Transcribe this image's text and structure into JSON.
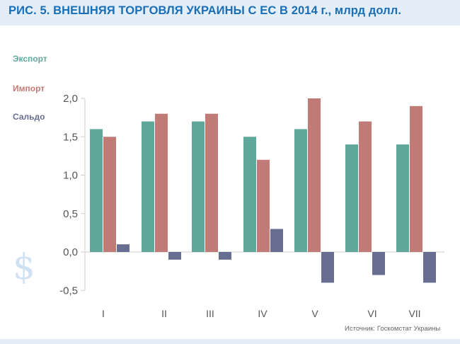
{
  "header": {
    "title": "РИС. 5. ВНЕШНЯЯ ТОРГОВЛЯ УКРАИНЫ С ЕС В 2014 г., млрд долл."
  },
  "source": "Источник: Госкомстат Украины",
  "decor": {
    "dollar": "$"
  },
  "colors": {
    "export": "#5fa89b",
    "import": "#c17b77",
    "saldo": "#686e91",
    "axis": "#cfcfcf",
    "title": "#1a6eb5",
    "band": "#e4eef8"
  },
  "chart_data": {
    "type": "bar",
    "title": "РИС. 5. ВНЕШНЯЯ ТОРГОВЛЯ УКРАИНЫ С ЕС В 2014 г., млрд долл.",
    "categories": [
      "I",
      "II",
      "III",
      "IV",
      "V",
      "VI",
      "VII"
    ],
    "series": [
      {
        "name": "Экспорт",
        "values": [
          1.6,
          1.7,
          1.7,
          1.5,
          1.6,
          1.4,
          1.4
        ]
      },
      {
        "name": "Импорт",
        "values": [
          1.5,
          1.8,
          1.8,
          1.2,
          2.0,
          1.7,
          1.9
        ]
      },
      {
        "name": "Сальдо",
        "values": [
          0.1,
          -0.1,
          -0.1,
          0.3,
          -0.4,
          -0.3,
          -0.4
        ]
      }
    ],
    "yticks": [
      "2,0",
      "1,5",
      "1,0",
      "0,5",
      "0,0",
      "-0,5"
    ],
    "ylim": [
      -0.5,
      2.0
    ],
    "legend_position": "top-left",
    "grid": false
  }
}
